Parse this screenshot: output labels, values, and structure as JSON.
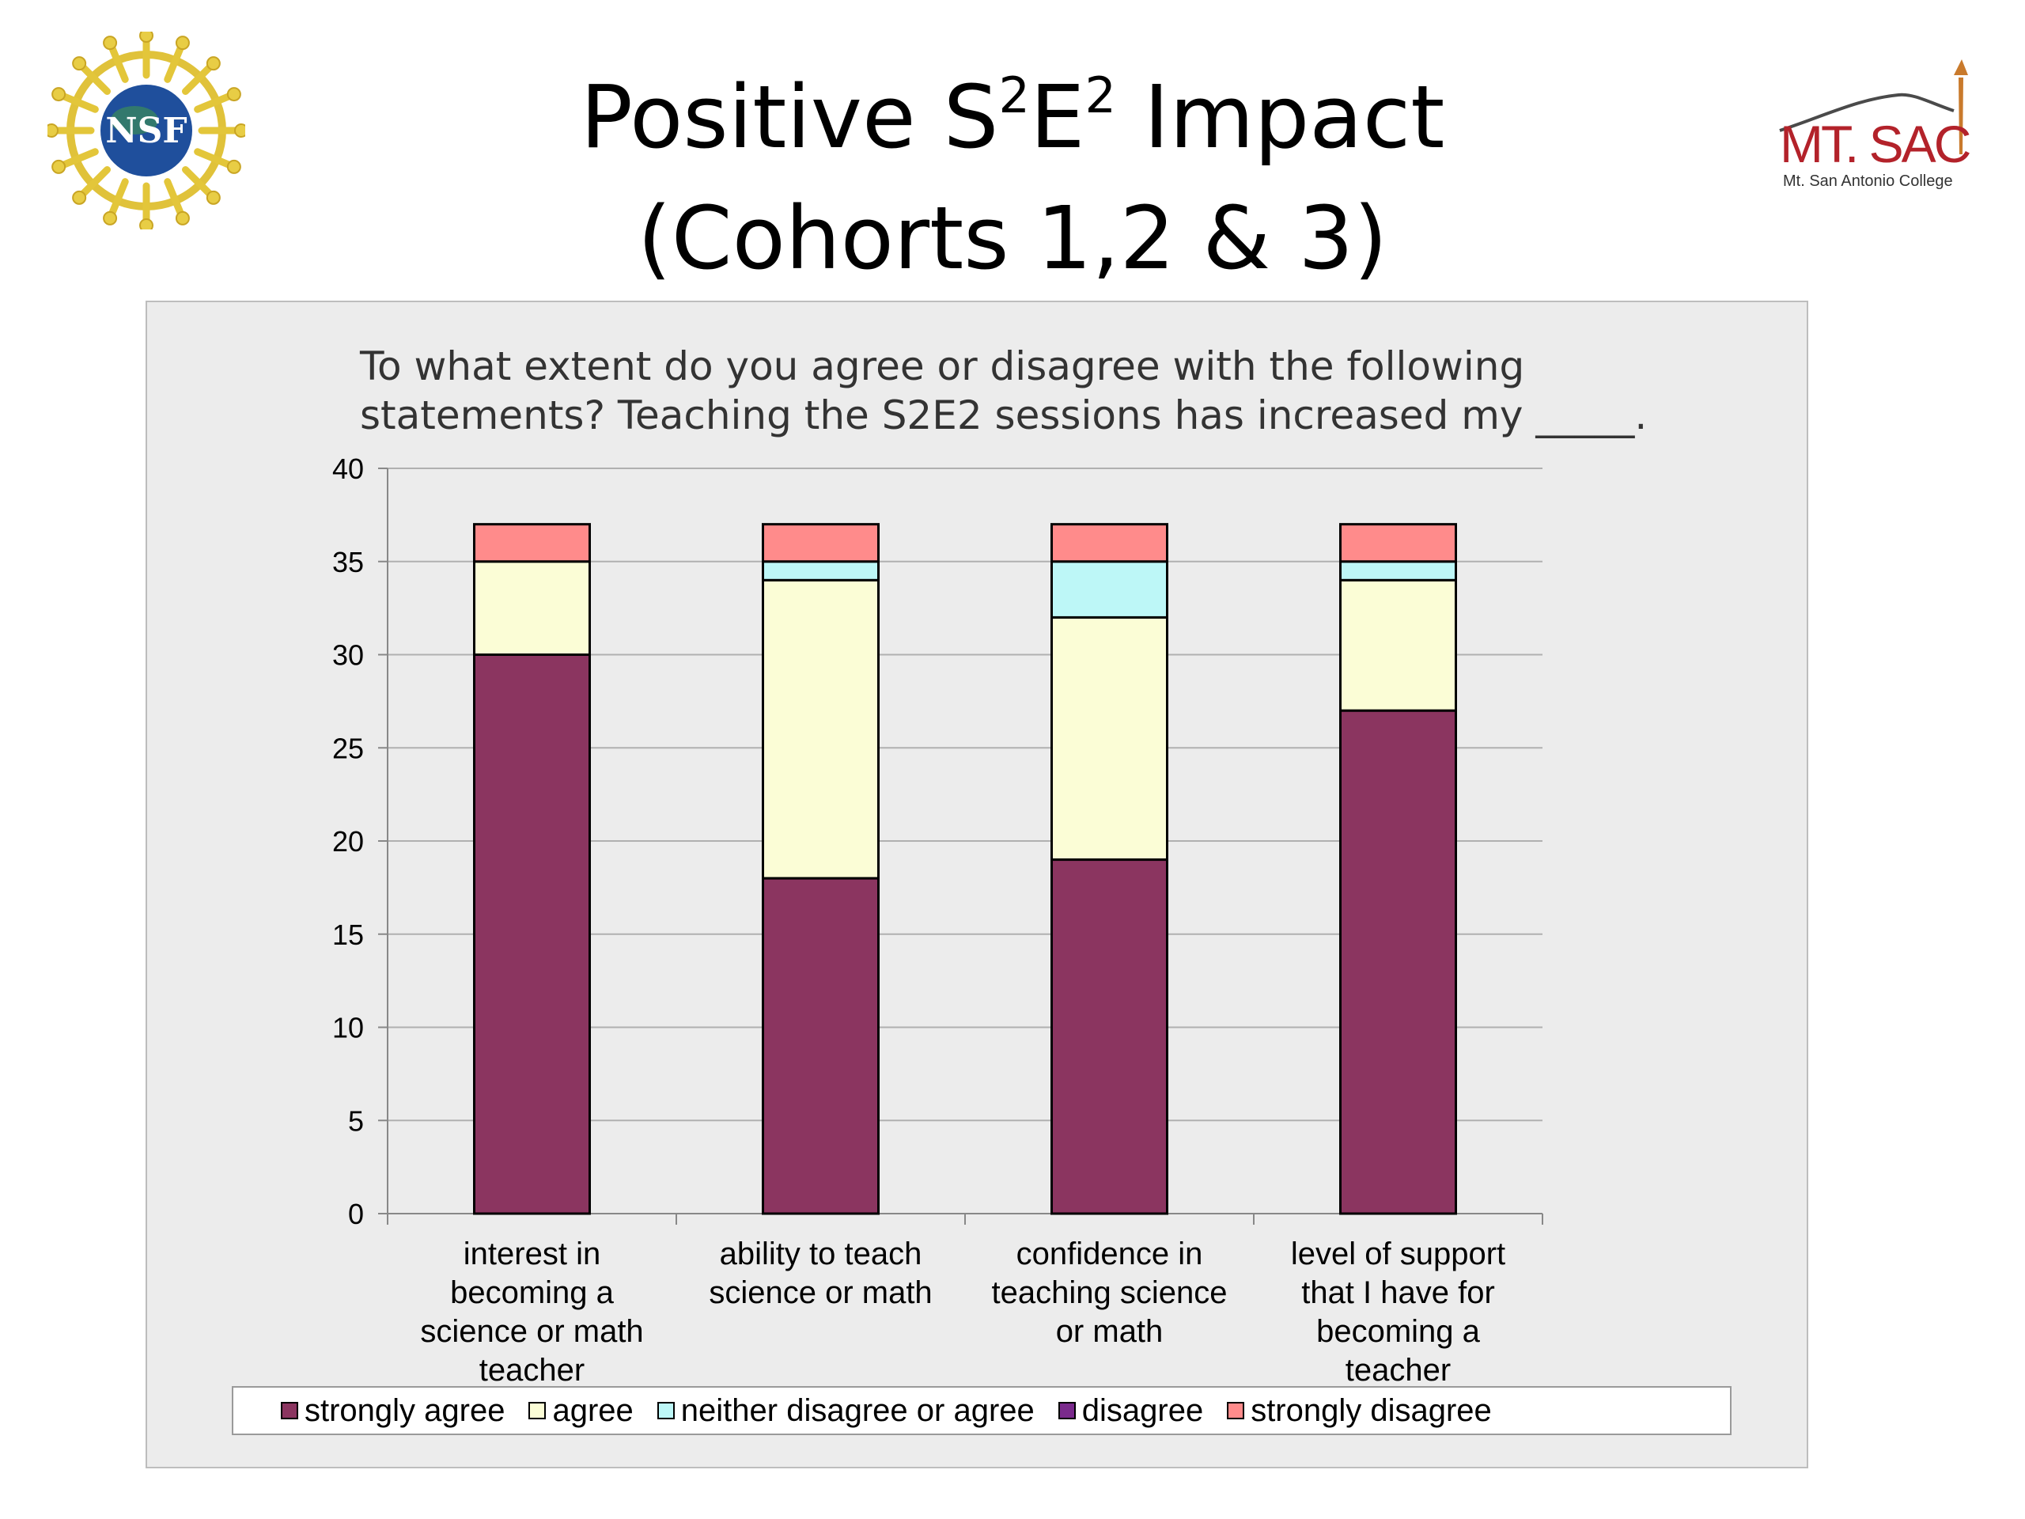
{
  "slide": {
    "title_line1_a": "Positive S",
    "title_sup1": "2",
    "title_line1_b": "E",
    "title_sup2": "2",
    "title_line1_c": " Impact",
    "title_line2": "(Cohorts 1,2 & 3)"
  },
  "logos": {
    "left_text": "NSF",
    "right_text": "MT. SAC",
    "right_subtext": "Mt. San Antonio College"
  },
  "colors": {
    "strongly_agree": "#8b3560",
    "agree": "#fbfdd6",
    "neither": "#bdf7f7",
    "disagree": "#7a2a8c",
    "strongly_disagree": "#ff8b8b",
    "panel": "#ececec",
    "grid": "#b0b0b0"
  },
  "chart_data": {
    "type": "bar",
    "stacked": true,
    "title": "To what extent do you agree or disagree with the following statements? Teaching the S2E2 sessions has increased my _____.",
    "title_lines": [
      "To what extent do you agree or disagree with the following",
      "statements? Teaching the S2E2 sessions has increased my _____."
    ],
    "categories": [
      [
        "interest in",
        "becoming a",
        "science or math",
        "teacher"
      ],
      [
        "ability to teach",
        "science or math"
      ],
      [
        "confidence in",
        "teaching science",
        "or math"
      ],
      [
        "level of support",
        "that I have for",
        "becoming a",
        "teacher"
      ]
    ],
    "series": [
      {
        "name": "strongly agree",
        "color": "#8b3560",
        "values": [
          30,
          18,
          19,
          27
        ]
      },
      {
        "name": "agree",
        "color": "#fbfdd6",
        "values": [
          5,
          16,
          13,
          7
        ]
      },
      {
        "name": "neither disagree or agree",
        "color": "#bdf7f7",
        "values": [
          0,
          1,
          3,
          1
        ]
      },
      {
        "name": "disagree",
        "color": "#7a2a8c",
        "values": [
          0,
          0,
          0,
          0
        ]
      },
      {
        "name": "strongly disagree",
        "color": "#ff8b8b",
        "values": [
          2,
          2,
          2,
          2
        ]
      }
    ],
    "ylim": [
      0,
      40
    ],
    "yticks": [
      0,
      5,
      10,
      15,
      20,
      25,
      30,
      35,
      40
    ],
    "grid": true,
    "legend": "bottom"
  }
}
